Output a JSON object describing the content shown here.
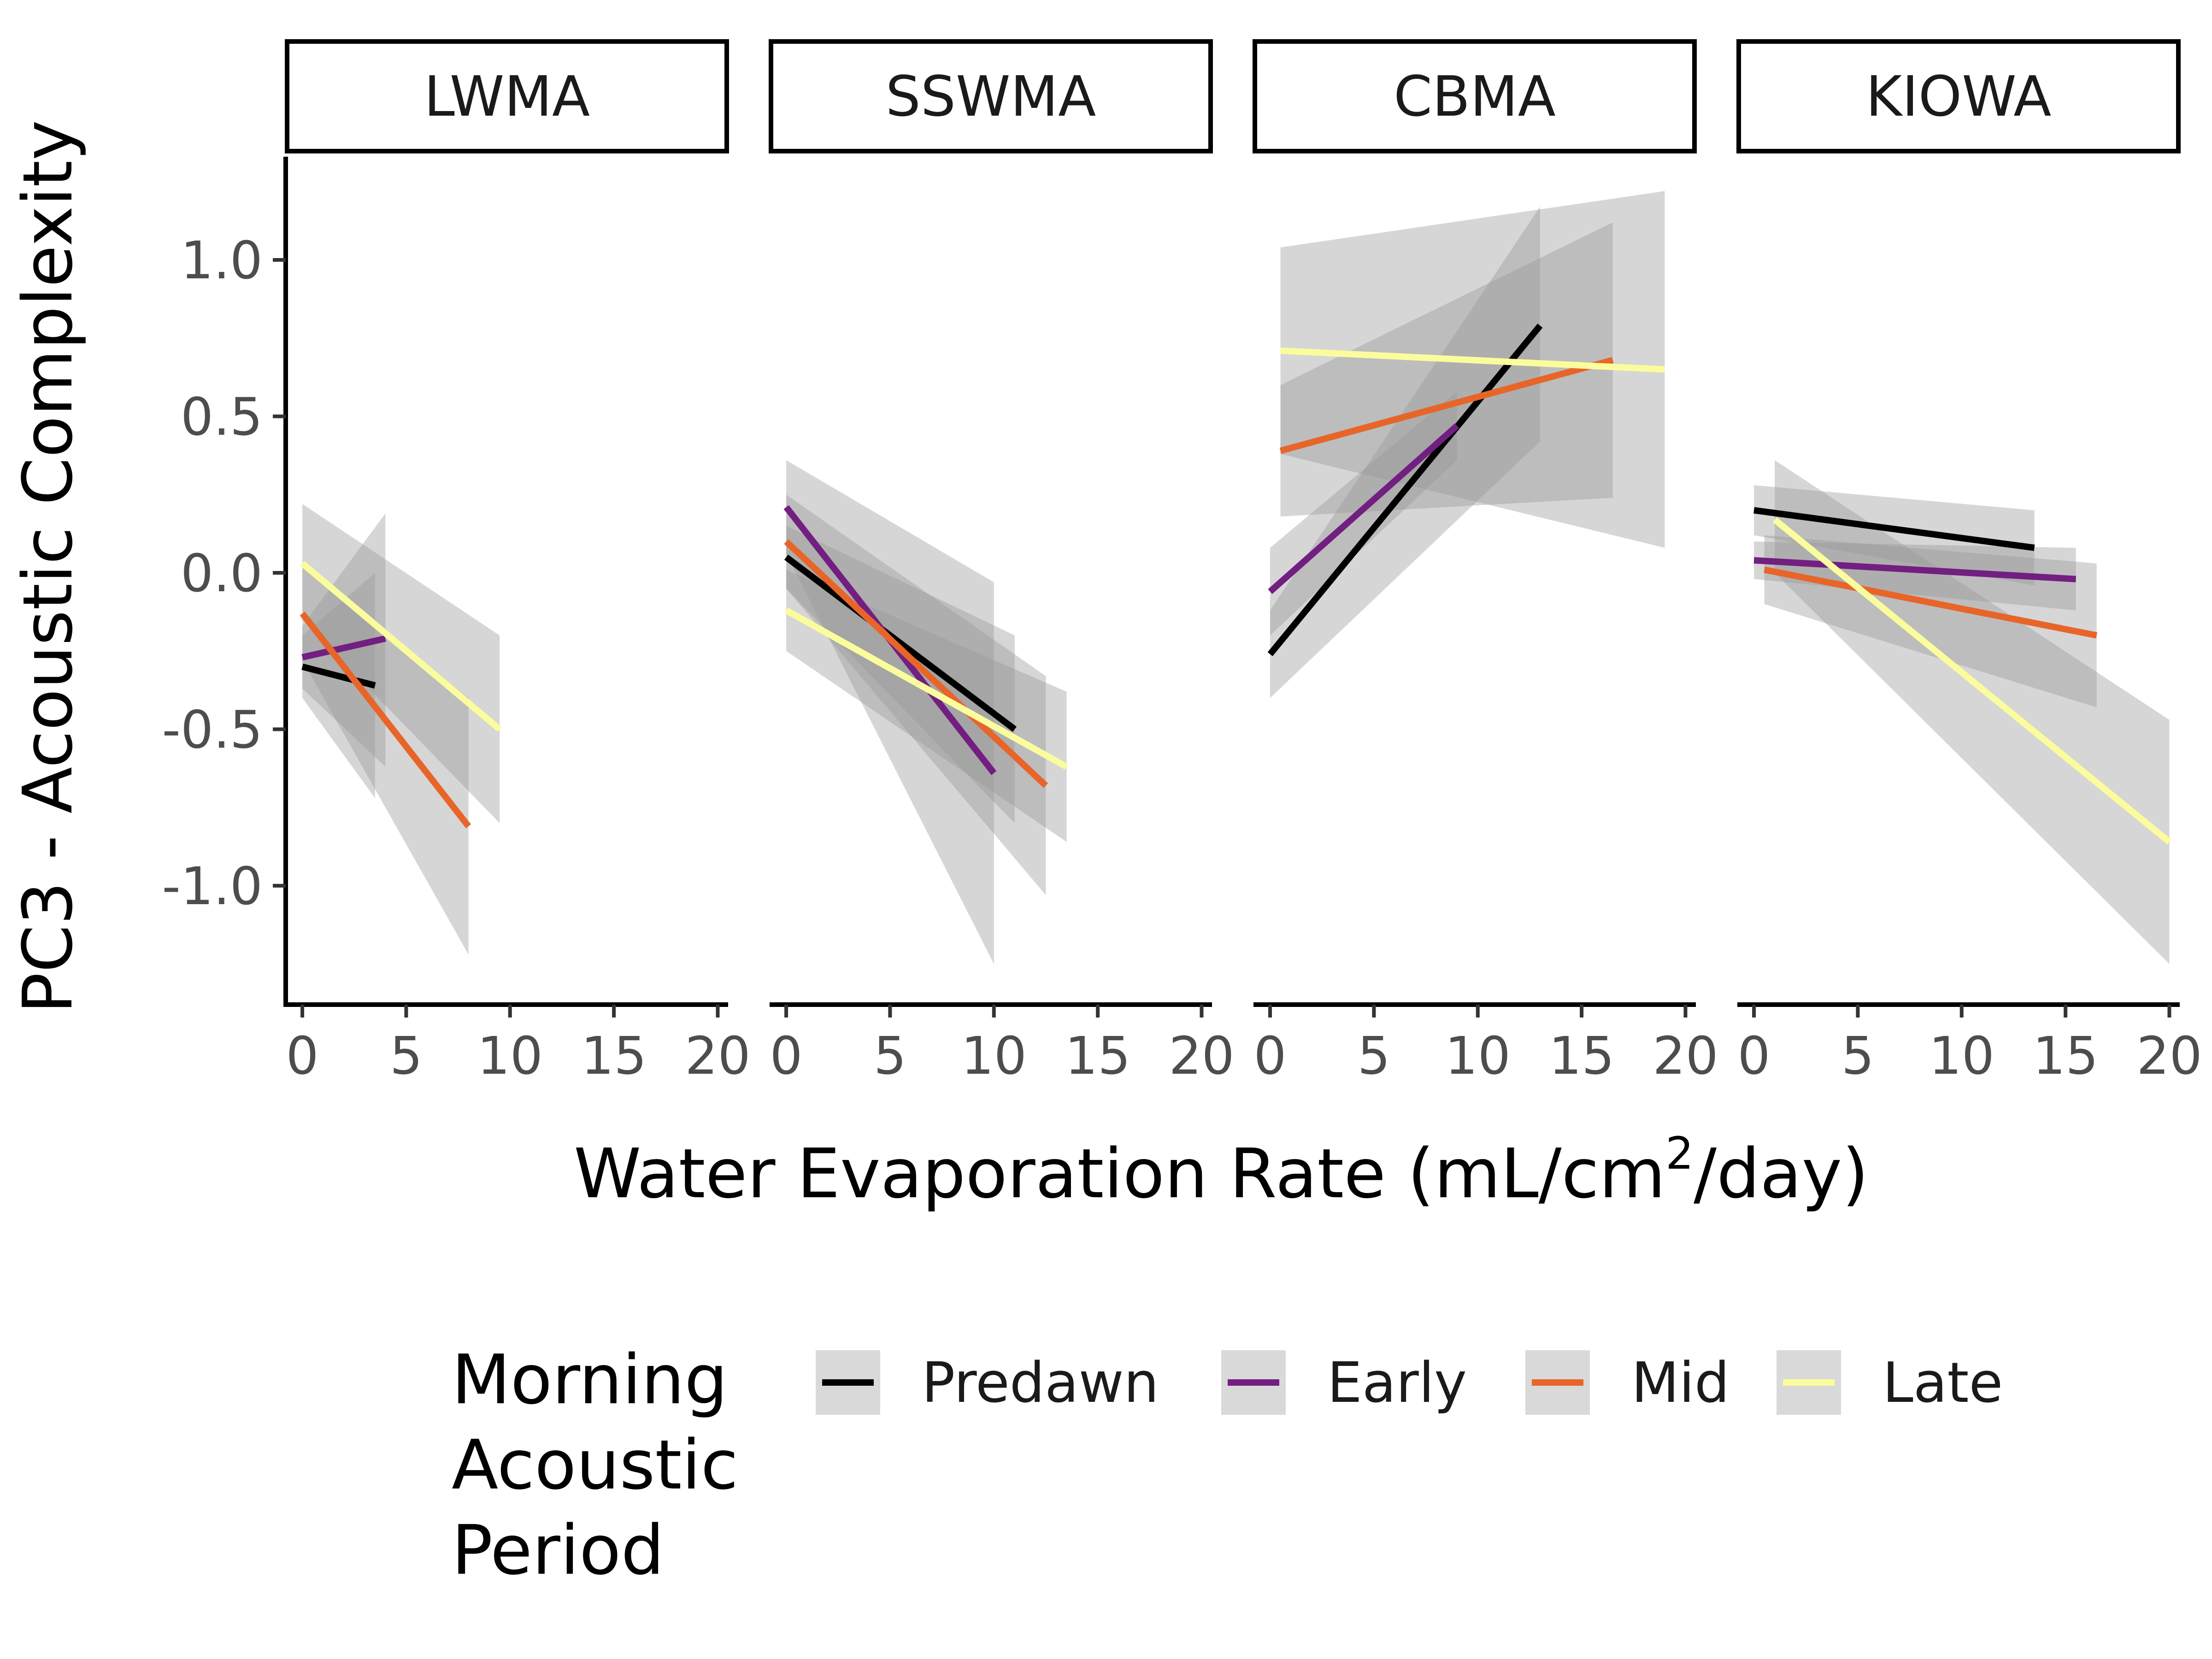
{
  "chart_data": {
    "type": "line",
    "y_axis_label": "PC3 - Acoustic Complexity",
    "x_axis_label": {
      "main": "Water Evaporation Rate (mL/cm",
      "superscript": "2",
      "suffix": "/day)"
    },
    "x_ticks": [
      0,
      5,
      10,
      15,
      20
    ],
    "y_ticks": [
      1.0,
      0.5,
      0.0,
      -0.5,
      -1.0
    ],
    "y_tick_labels": [
      "1.0",
      "0.5",
      "0.0",
      "-0.5",
      "-1.0"
    ],
    "x_tick_labels": [
      "0",
      "5",
      "10",
      "15",
      "20"
    ],
    "xlim": [
      -0.8,
      20.5
    ],
    "ylim": [
      -1.38,
      1.33
    ],
    "legend": {
      "title_lines": [
        "Morning",
        "Acoustic",
        "Period"
      ],
      "entries": [
        {
          "name": "Predawn",
          "color": "#000000"
        },
        {
          "name": "Early",
          "color": "#721f81"
        },
        {
          "name": "Mid",
          "color": "#f1605d"
        },
        {
          "name": "Late",
          "color": "#fcfdbf"
        }
      ]
    },
    "colors": {
      "Predawn": "#000000",
      "Early": "#721f81",
      "Mid": "#e8652a",
      "Late": "#fbfc9d"
    },
    "band_color": "#999999",
    "panels": [
      {
        "name": "LWMA",
        "series": [
          {
            "name": "Predawn",
            "x": [
              0,
              3.5
            ],
            "y": [
              -0.3,
              -0.36
            ],
            "lo0": -0.4,
            "hi0": -0.2,
            "lo1": -0.72,
            "hi1": 0.0
          },
          {
            "name": "Early",
            "x": [
              0,
              4.0
            ],
            "y": [
              -0.27,
              -0.21
            ],
            "lo0": -0.37,
            "hi0": -0.17,
            "lo1": -0.62,
            "hi1": 0.19
          },
          {
            "name": "Mid",
            "x": [
              0,
              8.0
            ],
            "y": [
              -0.13,
              -0.81
            ],
            "lo0": -0.28,
            "hi0": 0.02,
            "lo1": -1.22,
            "hi1": -0.4
          },
          {
            "name": "Late",
            "x": [
              0,
              9.5
            ],
            "y": [
              0.03,
              -0.5
            ],
            "lo0": -0.15,
            "hi0": 0.22,
            "lo1": -0.8,
            "hi1": -0.2
          }
        ]
      },
      {
        "name": "SSWMA",
        "series": [
          {
            "name": "Predawn",
            "x": [
              0,
              11.0
            ],
            "y": [
              0.05,
              -0.5
            ],
            "lo0": -0.05,
            "hi0": 0.15,
            "lo1": -0.8,
            "hi1": -0.2
          },
          {
            "name": "Early",
            "x": [
              0,
              10.0
            ],
            "y": [
              0.21,
              -0.64
            ],
            "lo0": 0.06,
            "hi0": 0.36,
            "lo1": -1.25,
            "hi1": -0.03
          },
          {
            "name": "Mid",
            "x": [
              0,
              12.5
            ],
            "y": [
              0.1,
              -0.68
            ],
            "lo0": -0.05,
            "hi0": 0.25,
            "lo1": -1.03,
            "hi1": -0.33
          },
          {
            "name": "Late",
            "x": [
              0,
              13.5
            ],
            "y": [
              -0.12,
              -0.62
            ],
            "lo0": -0.25,
            "hi0": 0.01,
            "lo1": -0.86,
            "hi1": -0.38
          }
        ]
      },
      {
        "name": "CBMA",
        "series": [
          {
            "name": "Predawn",
            "x": [
              0,
              13.0
            ],
            "y": [
              -0.26,
              0.79
            ],
            "lo0": -0.4,
            "hi0": -0.12,
            "lo1": 0.42,
            "hi1": 1.17
          },
          {
            "name": "Early",
            "x": [
              0,
              9.0
            ],
            "y": [
              -0.06,
              0.47
            ],
            "lo0": -0.2,
            "hi0": 0.08,
            "lo1": 0.36,
            "hi1": 0.58
          },
          {
            "name": "Mid",
            "x": [
              0.5,
              16.5
            ],
            "y": [
              0.39,
              0.68
            ],
            "lo0": 0.18,
            "hi0": 0.6,
            "lo1": 0.24,
            "hi1": 1.12
          },
          {
            "name": "Late",
            "x": [
              0.5,
              19.0
            ],
            "y": [
              0.71,
              0.65
            ],
            "lo0": 0.38,
            "hi0": 1.04,
            "lo1": 0.08,
            "hi1": 1.22
          }
        ]
      },
      {
        "name": "KIOWA",
        "series": [
          {
            "name": "Predawn",
            "x": [
              0,
              13.5
            ],
            "y": [
              0.2,
              0.08
            ],
            "lo0": 0.12,
            "hi0": 0.28,
            "lo1": -0.04,
            "hi1": 0.2
          },
          {
            "name": "Early",
            "x": [
              0,
              15.5
            ],
            "y": [
              0.04,
              -0.02
            ],
            "lo0": -0.02,
            "hi0": 0.1,
            "lo1": -0.12,
            "hi1": 0.08
          },
          {
            "name": "Mid",
            "x": [
              0.5,
              16.5
            ],
            "y": [
              0.01,
              -0.2
            ],
            "lo0": -0.1,
            "hi0": 0.12,
            "lo1": -0.43,
            "hi1": 0.03
          },
          {
            "name": "Late",
            "x": [
              1.0,
              20.0
            ],
            "y": [
              0.17,
              -0.86
            ],
            "lo0": 0.0,
            "hi0": 0.36,
            "lo1": -1.25,
            "hi1": -0.47
          }
        ]
      }
    ]
  }
}
